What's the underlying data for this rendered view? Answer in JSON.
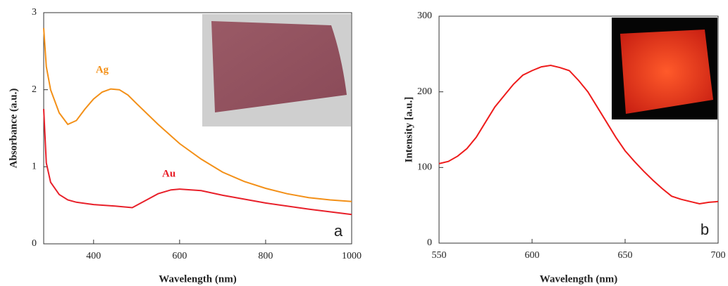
{
  "chart_data": [
    {
      "type": "line",
      "xlabel": "Wavelength (nm)",
      "ylabel": "Absorbance (a.u.)",
      "xlim": [
        284,
        1000
      ],
      "ylim": [
        0,
        3
      ],
      "xticks": [
        400,
        600,
        800,
        1000
      ],
      "yticks": [
        0,
        1,
        2,
        3
      ],
      "series": [
        {
          "name": "Ag",
          "color": "#f39018",
          "x": [
            284,
            290,
            300,
            320,
            340,
            360,
            380,
            400,
            420,
            440,
            460,
            480,
            500,
            550,
            600,
            650,
            700,
            750,
            800,
            850,
            900,
            950,
            1000
          ],
          "values": [
            2.8,
            2.3,
            2.0,
            1.7,
            1.55,
            1.6,
            1.75,
            1.88,
            1.97,
            2.01,
            2.0,
            1.93,
            1.82,
            1.55,
            1.3,
            1.1,
            0.93,
            0.81,
            0.72,
            0.65,
            0.6,
            0.57,
            0.55
          ]
        },
        {
          "name": "Au",
          "color": "#e8202a",
          "x": [
            284,
            290,
            300,
            320,
            340,
            360,
            400,
            450,
            490,
            520,
            550,
            580,
            600,
            650,
            700,
            800,
            900,
            1000
          ],
          "values": [
            1.75,
            1.05,
            0.8,
            0.64,
            0.57,
            0.54,
            0.51,
            0.49,
            0.47,
            0.56,
            0.65,
            0.7,
            0.71,
            0.69,
            0.63,
            0.53,
            0.45,
            0.38
          ]
        }
      ],
      "panel_label": "a"
    },
    {
      "type": "line",
      "xlabel": "Wavelength (nm)",
      "ylabel": "Intensity [a.u.]",
      "xlim": [
        550,
        700
      ],
      "ylim": [
        0,
        300
      ],
      "xticks": [
        550,
        600,
        650,
        700
      ],
      "yticks": [
        0,
        100,
        200,
        300
      ],
      "series": [
        {
          "color": "#ee1c1c",
          "x": [
            550,
            555,
            560,
            565,
            570,
            575,
            580,
            585,
            590,
            595,
            600,
            605,
            610,
            615,
            620,
            625,
            630,
            635,
            640,
            645,
            650,
            655,
            660,
            665,
            670,
            675,
            680,
            685,
            690,
            695,
            700
          ],
          "values": [
            105,
            108,
            115,
            125,
            140,
            160,
            180,
            195,
            210,
            222,
            228,
            233,
            235,
            232,
            228,
            215,
            200,
            180,
            160,
            140,
            122,
            108,
            95,
            83,
            72,
            62,
            58,
            55,
            52,
            54,
            55
          ]
        }
      ],
      "panel_label": "b"
    }
  ]
}
